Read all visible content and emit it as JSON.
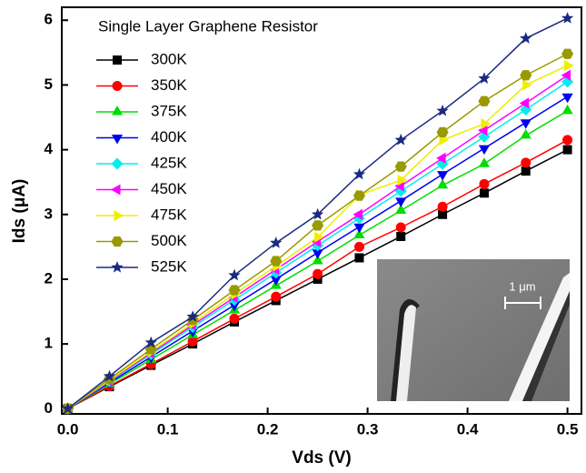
{
  "chart_data": {
    "type": "line",
    "annotation": "Single Layer Graphene Resistor",
    "x_label": "Vds (V)",
    "y_label": "Ids (μA)",
    "inset_label": "1 μm",
    "x": [
      0,
      0.0417,
      0.0833,
      0.125,
      0.1667,
      0.2083,
      0.25,
      0.2917,
      0.3333,
      0.375,
      0.4167,
      0.4583,
      0.5
    ],
    "xlim": [
      -0.006,
      0.514
    ],
    "ylim": [
      -0.08,
      6.2
    ],
    "xticks": [
      {
        "value": 0,
        "label": "0.0"
      },
      0.1,
      0.2,
      0.3,
      0.4,
      0.5
    ],
    "yticks": [
      0,
      1,
      2,
      3,
      4,
      5,
      6
    ],
    "series": [
      {
        "name": "300K",
        "color": "#000000",
        "marker": "square",
        "values": [
          0,
          0.34,
          0.67,
          1.0,
          1.34,
          1.67,
          2.0,
          2.33,
          2.66,
          3.0,
          3.33,
          3.67,
          4.0
        ]
      },
      {
        "name": "350K",
        "color": "#ff0000",
        "marker": "circle",
        "values": [
          0,
          0.35,
          0.69,
          1.04,
          1.39,
          1.73,
          2.08,
          2.5,
          2.8,
          3.12,
          3.47,
          3.8,
          4.15
        ]
      },
      {
        "name": "375K",
        "color": "#00dd00",
        "marker": "triangle-up",
        "values": [
          0,
          0.38,
          0.76,
          1.14,
          1.52,
          1.9,
          2.28,
          2.68,
          3.06,
          3.45,
          3.78,
          4.22,
          4.6
        ]
      },
      {
        "name": "400K",
        "color": "#0000ee",
        "marker": "triangle-down",
        "values": [
          0,
          0.4,
          0.8,
          1.2,
          1.6,
          2.0,
          2.41,
          2.81,
          3.21,
          3.62,
          4.02,
          4.42,
          4.82
        ]
      },
      {
        "name": "425K",
        "color": "#00eeee",
        "marker": "diamond",
        "values": [
          0,
          0.42,
          0.84,
          1.26,
          1.68,
          2.1,
          2.52,
          2.94,
          3.36,
          3.78,
          4.2,
          4.62,
          5.05
        ]
      },
      {
        "name": "450K",
        "color": "#ff00ff",
        "marker": "triangle-left",
        "values": [
          0,
          0.43,
          0.86,
          1.29,
          1.72,
          2.15,
          2.58,
          3.0,
          3.44,
          3.87,
          4.3,
          4.72,
          5.15
        ]
      },
      {
        "name": "475K",
        "color": "#eeee00",
        "marker": "triangle-right",
        "values": [
          0,
          0.44,
          0.88,
          1.32,
          1.77,
          2.2,
          2.65,
          3.3,
          3.53,
          4.15,
          4.4,
          5.0,
          5.3
        ]
      },
      {
        "name": "500K",
        "color": "#999900",
        "marker": "hexagon",
        "values": [
          0,
          0.46,
          0.92,
          1.37,
          1.83,
          2.28,
          2.83,
          3.29,
          3.74,
          4.27,
          4.75,
          5.15,
          5.48
        ]
      },
      {
        "name": "525K",
        "color": "#1a2a80",
        "marker": "star",
        "values": [
          0,
          0.5,
          1.02,
          1.42,
          2.06,
          2.56,
          3.0,
          3.62,
          4.15,
          4.6,
          5.1,
          5.72,
          6.03
        ]
      }
    ]
  }
}
